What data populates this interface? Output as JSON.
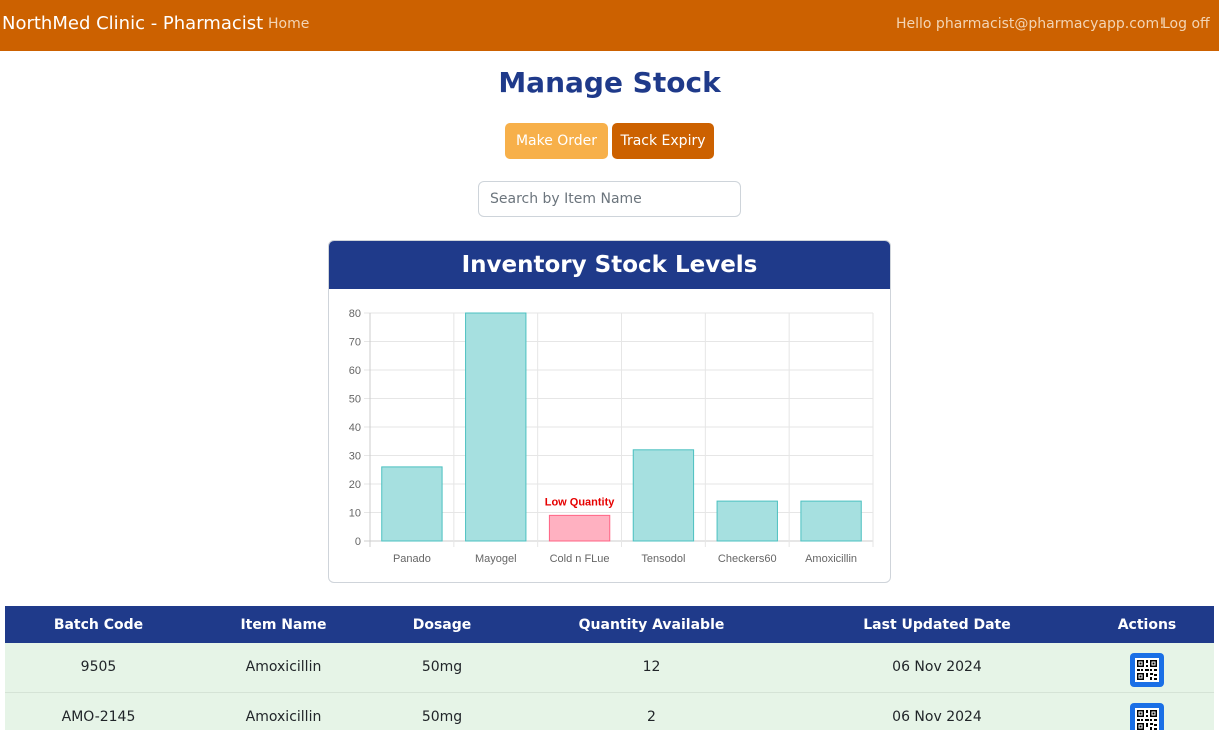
{
  "navbar": {
    "brand": "NorthMed Clinic - Pharmacist",
    "home_link": "Home",
    "greeting": "Hello pharmacist@pharmacyapp.com!",
    "logoff_link": "Log off"
  },
  "page": {
    "title": "Manage Stock"
  },
  "actions": {
    "make_order_label": "Make Order",
    "track_expiry_label": "Track Expiry"
  },
  "search": {
    "placeholder": "Search by Item Name",
    "value": ""
  },
  "chart_card": {
    "title": "Inventory Stock Levels"
  },
  "chart_data": {
    "type": "bar",
    "title": "Inventory Stock Levels",
    "categories": [
      "Panado",
      "Mayogel",
      "Cold n FLue",
      "Tensodol",
      "Checkers60",
      "Amoxicillin"
    ],
    "values": [
      26,
      80,
      9,
      32,
      14,
      14
    ],
    "low_stock": [
      false,
      false,
      true,
      false,
      false,
      false
    ],
    "annotations": [
      {
        "category": "Cold n FLue",
        "text": "Low Quantity"
      }
    ],
    "ylim": [
      0,
      80
    ],
    "yticks": [
      0,
      10,
      20,
      30,
      40,
      50,
      60,
      70,
      80
    ],
    "grid": true,
    "colors": {
      "normal": "#a6e0e0",
      "normal_border": "#4bc0c0",
      "low": "#ffb1c1",
      "low_border": "#ff6384",
      "annotation": "#e60000"
    }
  },
  "table": {
    "columns": [
      "Batch Code",
      "Item Name",
      "Dosage",
      "Quantity Available",
      "Last Updated Date",
      "Actions"
    ],
    "rows": [
      {
        "batch_code": "9505",
        "item_name": "Amoxicillin",
        "dosage": "50mg",
        "quantity": "12",
        "last_updated": "06 Nov 2024",
        "action_icon": "qr-code-icon"
      },
      {
        "batch_code": "AMO-2145",
        "item_name": "Amoxicillin",
        "dosage": "50mg",
        "quantity": "2",
        "last_updated": "06 Nov 2024",
        "action_icon": "qr-code-icon"
      }
    ]
  },
  "colors": {
    "navbar": "#cc6100",
    "primary_blue": "#1f3a8a",
    "order_button": "#f7b04a",
    "expiry_button": "#cc6100",
    "row_bg": "#e6f4e7",
    "qr_button": "#1a6fe6"
  }
}
